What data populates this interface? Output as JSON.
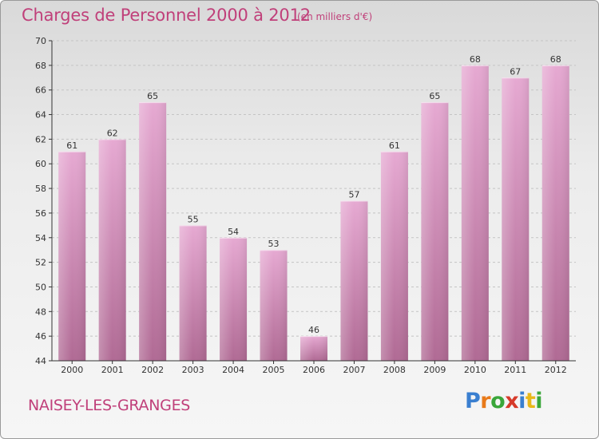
{
  "title": "Charges de Personnel 2000 à 2012",
  "subtitle": "(en milliers d'€)",
  "commune": "NAISEY-LES-GRANGES",
  "logo": {
    "text": "Proxiti",
    "letters": [
      {
        "ch": "P",
        "color": "#3a7fd0"
      },
      {
        "ch": "r",
        "color": "#e87a1a"
      },
      {
        "ch": "o",
        "color": "#3aa63a"
      },
      {
        "ch": "x",
        "color": "#d63a2a"
      },
      {
        "ch": "i",
        "color": "#3a7fd0"
      },
      {
        "ch": "t",
        "color": "#e8b81a"
      },
      {
        "ch": "i",
        "color": "#3aa63a"
      }
    ]
  },
  "colors": {
    "title": "#c0407a",
    "bar_top": "#e6a9d2",
    "bar_bottom": "#b06a94",
    "axis": "#333333",
    "grid": "#c4c4c4"
  },
  "chart_data": {
    "type": "bar",
    "categories": [
      "2000",
      "2001",
      "2002",
      "2003",
      "2004",
      "2005",
      "2006",
      "2007",
      "2008",
      "2009",
      "2010",
      "2011",
      "2012"
    ],
    "values": [
      61,
      62,
      65,
      55,
      54,
      53,
      46,
      57,
      61,
      65,
      68,
      67,
      68
    ],
    "ylim": [
      44,
      70
    ],
    "yticks": [
      44,
      46,
      48,
      50,
      52,
      54,
      56,
      58,
      60,
      62,
      64,
      66,
      68,
      70
    ],
    "grid": true,
    "grid_style": "dashed-horizontal"
  }
}
